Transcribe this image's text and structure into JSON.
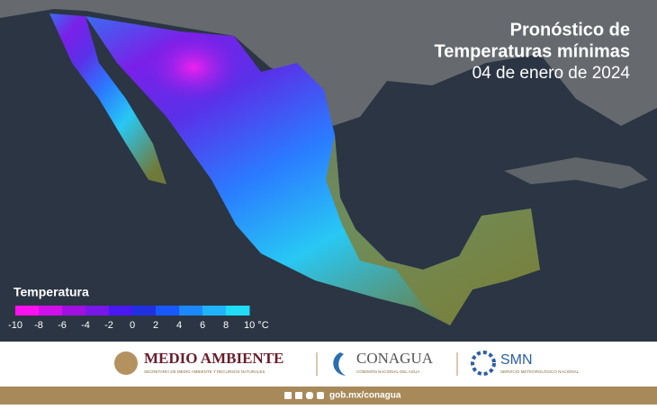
{
  "header": {
    "title_line1": "Pronóstico de",
    "title_line2": "Temperaturas mínimas",
    "date": "04 de enero de 2024"
  },
  "legend": {
    "title": "Temperatura",
    "colors": [
      "#ff10f0",
      "#d010e8",
      "#a010e0",
      "#7818e8",
      "#4a18f0",
      "#2030e0",
      "#1858ff",
      "#1c88ff",
      "#20b4ff",
      "#20dcf4"
    ],
    "ticks": [
      "-10",
      "-8",
      "-6",
      "-4",
      "-2",
      "0",
      "2",
      "4",
      "6",
      "8",
      "10 °C"
    ]
  },
  "footer": {
    "semarnat": {
      "name": "MEDIO AMBIENTE",
      "subtitle": "SECRETARÍA DE MEDIO AMBIENTE Y RECURSOS NATURALES"
    },
    "conagua": {
      "name": "CONAGUA",
      "subtitle": "COMISIÓN NACIONAL DEL AGUA"
    },
    "smn": {
      "name": "SMN",
      "subtitle": "SERVICIO METEOROLÓGICO NACIONAL"
    },
    "url": "gob.mx/conagua"
  }
}
